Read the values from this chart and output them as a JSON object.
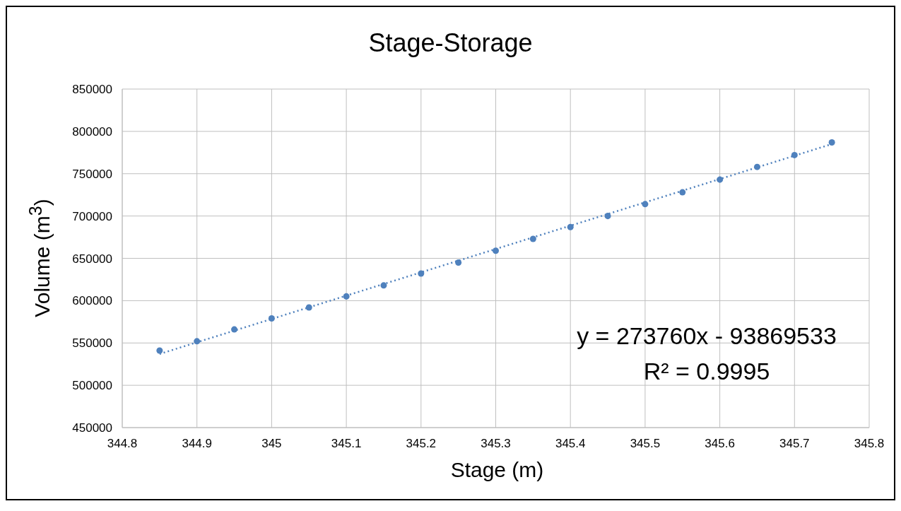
{
  "chart_data": {
    "type": "scatter",
    "title": "Stage-Storage",
    "xlabel": "Stage (m)",
    "ylabel": "Volume (m$^{3}$)",
    "xlim": [
      344.8,
      345.8
    ],
    "xticks": [
      344.8,
      344.9,
      345,
      345.1,
      345.2,
      345.3,
      345.4,
      345.5,
      345.6,
      345.7,
      345.8
    ],
    "ylim": [
      450000,
      850000
    ],
    "yticks": [
      450000,
      500000,
      550000,
      600000,
      650000,
      700000,
      750000,
      800000,
      850000
    ],
    "grid": true,
    "marker": "circle",
    "series": [
      {
        "color": "#4f81bd",
        "x": [
          344.85,
          344.9,
          344.95,
          345,
          345.05,
          345.1,
          345.15,
          345.2,
          345.25,
          345.3,
          345.35,
          345.4,
          345.45,
          345.5,
          345.55,
          345.6,
          345.65,
          345.7,
          345.75
        ],
        "values": [
          541000,
          552000,
          566000,
          579000,
          592000,
          605000,
          618000,
          632000,
          645000,
          659000,
          673000,
          687000,
          700000,
          714000,
          728000,
          743000,
          758000,
          772000,
          787000
        ]
      },
      {
        "type": "line",
        "color": "#4f81bd",
        "line_style": "dotted",
        "marker": "none",
        "x": [
          344.85,
          345.75
        ],
        "values": [
          537000,
          785000
        ]
      }
    ],
    "annotations": [
      "y = 273760x - 93869533",
      "R² = 0.9995"
    ]
  }
}
